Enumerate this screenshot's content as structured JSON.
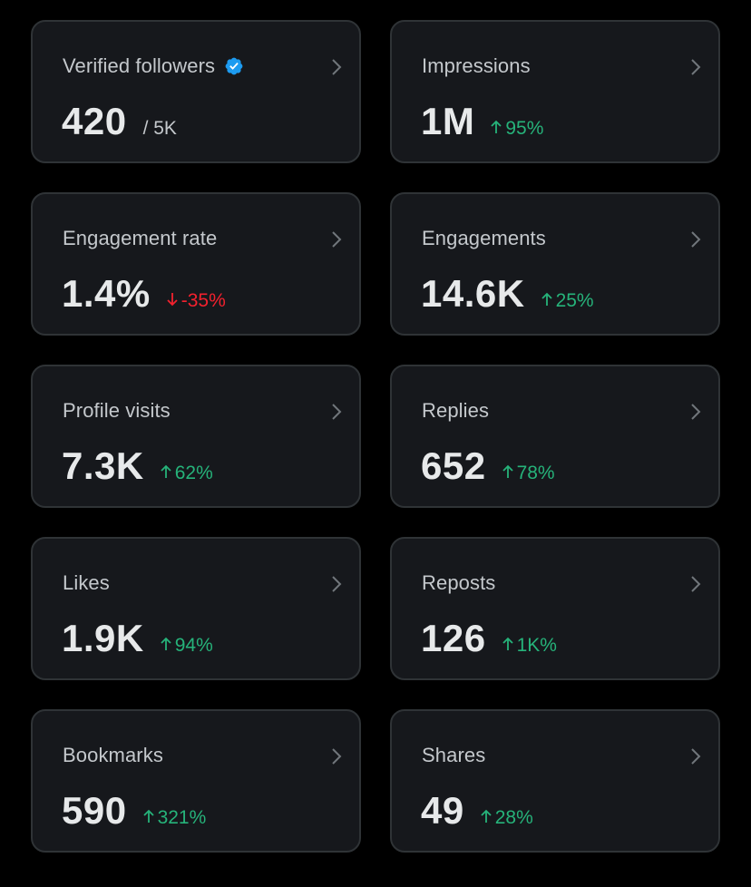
{
  "colors": {
    "background": "#000000",
    "card_bg": "#16181c",
    "card_border": "#2f3336",
    "positive": "#26b37a",
    "negative": "#f4212e",
    "verified_badge": "#1d9bf0"
  },
  "cards": [
    {
      "label": "Verified followers",
      "value": "420",
      "sub": "/ 5K",
      "icon": "verified-badge-icon"
    },
    {
      "label": "Impressions",
      "value": "1M",
      "delta": "95%",
      "direction": "up"
    },
    {
      "label": "Engagement rate",
      "value": "1.4%",
      "delta": "-35%",
      "direction": "down"
    },
    {
      "label": "Engagements",
      "value": "14.6K",
      "delta": "25%",
      "direction": "up"
    },
    {
      "label": "Profile visits",
      "value": "7.3K",
      "delta": "62%",
      "direction": "up"
    },
    {
      "label": "Replies",
      "value": "652",
      "delta": "78%",
      "direction": "up"
    },
    {
      "label": "Likes",
      "value": "1.9K",
      "delta": "94%",
      "direction": "up"
    },
    {
      "label": "Reposts",
      "value": "126",
      "delta": "1K%",
      "direction": "up"
    },
    {
      "label": "Bookmarks",
      "value": "590",
      "delta": "321%",
      "direction": "up"
    },
    {
      "label": "Shares",
      "value": "49",
      "delta": "28%",
      "direction": "up"
    }
  ]
}
